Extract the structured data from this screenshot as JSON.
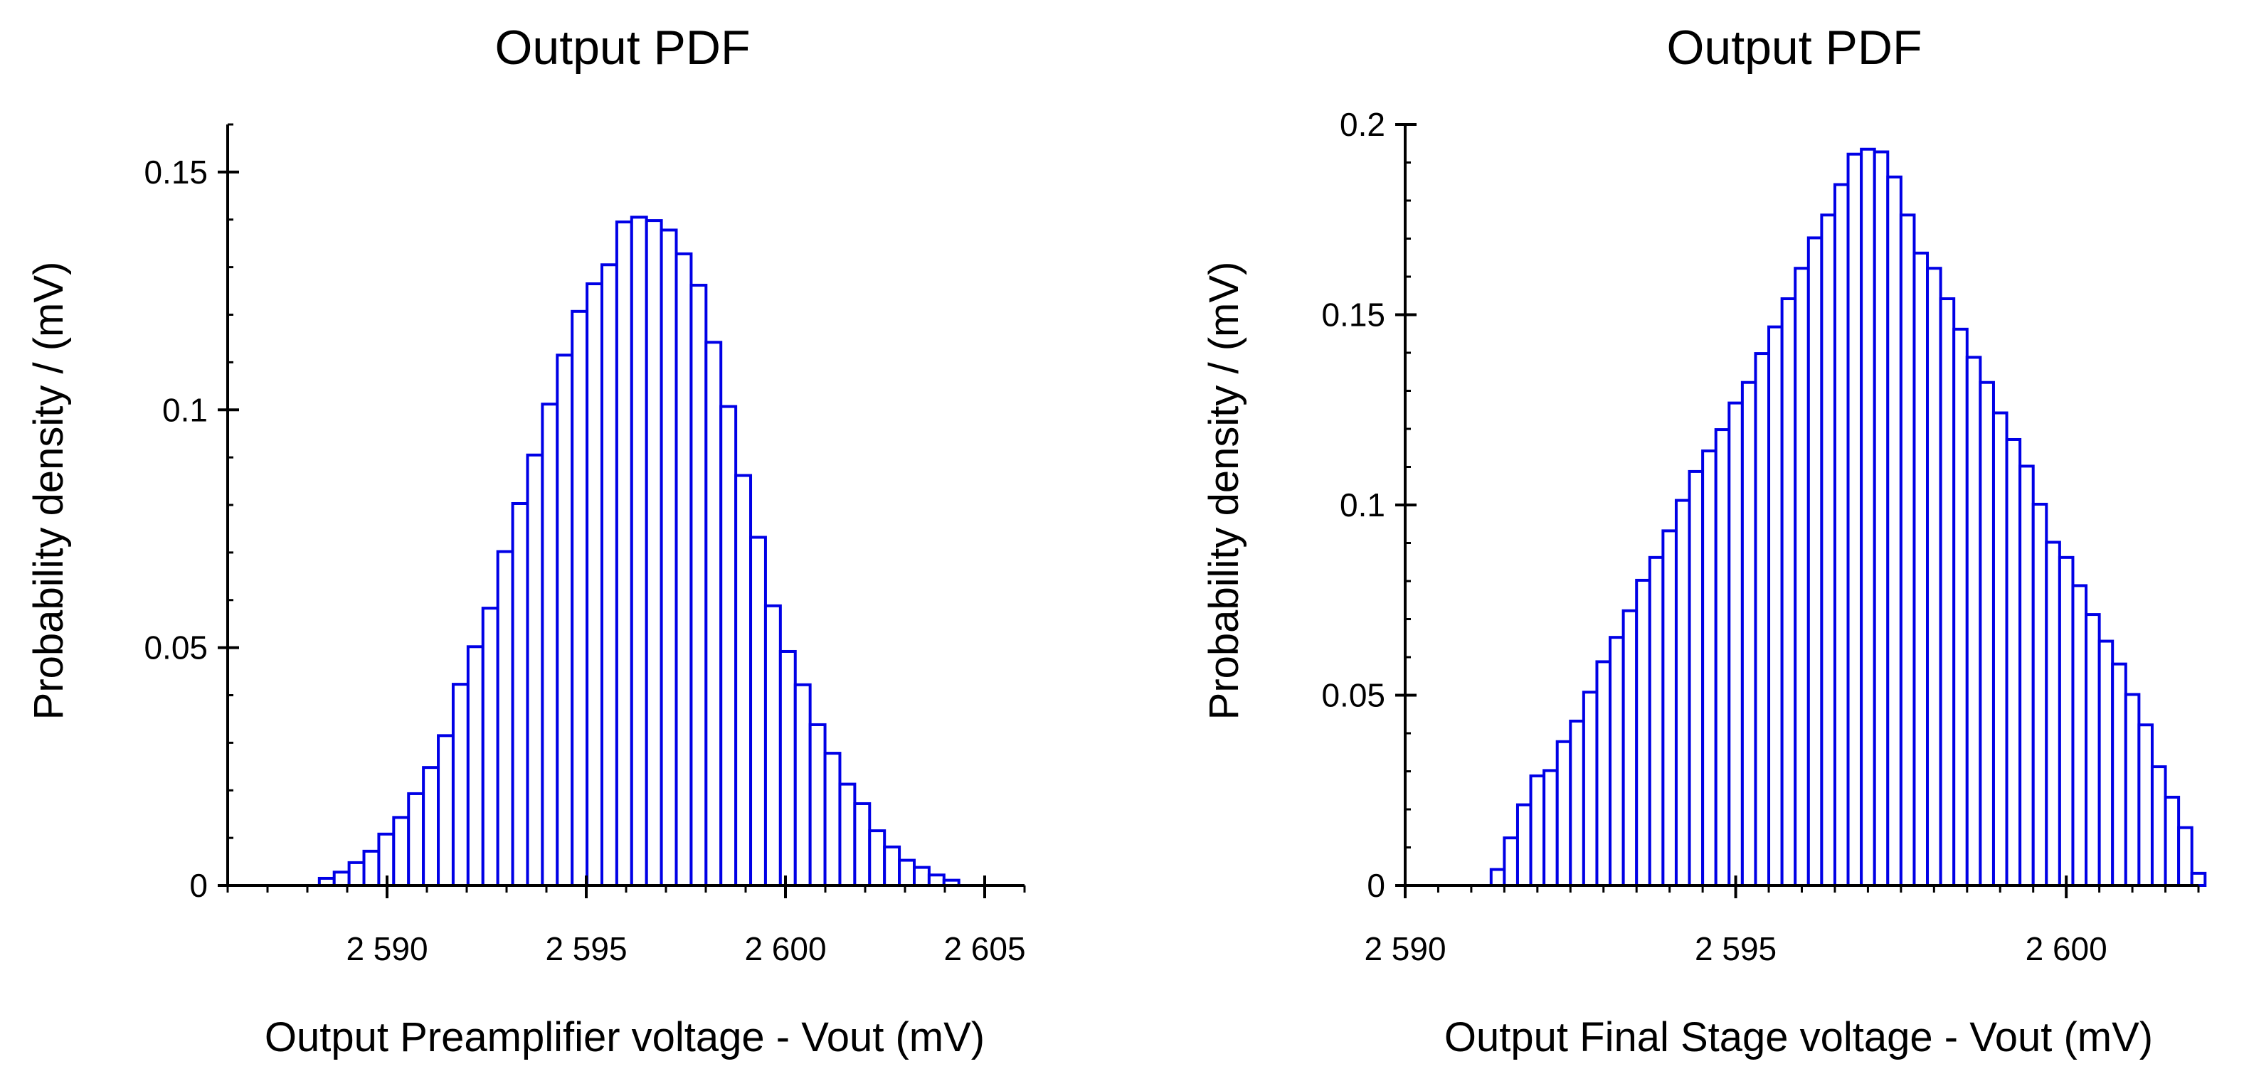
{
  "colors": {
    "bar_stroke": "#0000e6",
    "bar_fill": "#ffffff",
    "axis": "#000000"
  },
  "chart_data": [
    {
      "type": "bar",
      "title": "Output PDF",
      "xlabel": "Output Preamplifier voltage - Vout (mV)",
      "ylabel": "Probability density / (mV)",
      "xlim": [
        2586,
        2606
      ],
      "ylim": [
        0,
        0.16
      ],
      "xticks": [
        2590,
        2595,
        2600,
        2605
      ],
      "xtick_labels": [
        "2 590",
        "2 595",
        "2 600",
        "2 605"
      ],
      "yticks": [
        0,
        0.05,
        0.1,
        0.15
      ],
      "ytick_labels": [
        "0",
        "0.05",
        "0.1",
        "0.15"
      ],
      "grid": false,
      "bins_start": 2588.3,
      "bin_width": 0.3733,
      "values": [
        0.0015,
        0.0028,
        0.0048,
        0.0072,
        0.0108,
        0.0143,
        0.0193,
        0.0248,
        0.0315,
        0.0423,
        0.0502,
        0.0583,
        0.0702,
        0.0803,
        0.0905,
        0.1012,
        0.1115,
        0.1207,
        0.1265,
        0.1305,
        0.1395,
        0.1405,
        0.1398,
        0.1378,
        0.1328,
        0.1262,
        0.1142,
        0.1007,
        0.0862,
        0.0732,
        0.0588,
        0.0492,
        0.0422,
        0.0338,
        0.0278,
        0.0213,
        0.0172,
        0.0115,
        0.0081,
        0.0053,
        0.0038,
        0.0022,
        0.0011
      ]
    },
    {
      "type": "bar",
      "title": "Output PDF",
      "xlabel": "Output Final Stage voltage - Vout (mV)",
      "ylabel": "Probability density / (mV)",
      "xlim": [
        2590,
        2602
      ],
      "ylim": [
        0,
        0.2
      ],
      "xticks": [
        2590,
        2595,
        2600
      ],
      "xtick_labels": [
        "2 590",
        "2 595",
        "2 600"
      ],
      "yticks": [
        0,
        0.05,
        0.1,
        0.15,
        0.2
      ],
      "ytick_labels": [
        "0",
        "0.05",
        "0.1",
        "0.15",
        "0.2"
      ],
      "grid": false,
      "bins_start": 2591.3,
      "bin_width": 0.2,
      "values": [
        0.0042,
        0.0125,
        0.0212,
        0.0288,
        0.0302,
        0.0378,
        0.0432,
        0.0508,
        0.0588,
        0.0652,
        0.0722,
        0.0802,
        0.0862,
        0.0932,
        0.1012,
        0.1088,
        0.1142,
        0.1198,
        0.1268,
        0.1322,
        0.1398,
        0.1468,
        0.1542,
        0.1622,
        0.1702,
        0.1762,
        0.1842,
        0.1922,
        0.1935,
        0.1928,
        0.1862,
        0.1762,
        0.1662,
        0.1622,
        0.1542,
        0.1462,
        0.1388,
        0.1322,
        0.1242,
        0.1172,
        0.1102,
        0.1002,
        0.0902,
        0.0862,
        0.0788,
        0.0712,
        0.0642,
        0.0582,
        0.0502,
        0.0422,
        0.0312,
        0.0232,
        0.0152,
        0.0032
      ]
    }
  ]
}
